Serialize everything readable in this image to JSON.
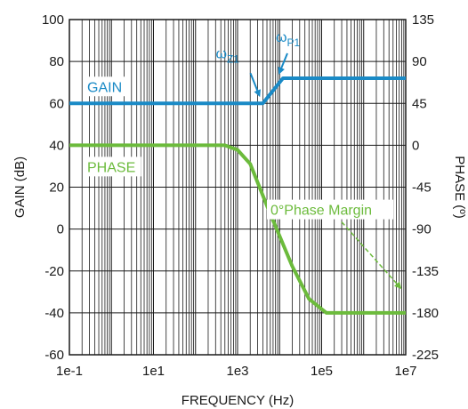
{
  "chart_data": {
    "type": "line",
    "xlabel": "FREQUENCY (Hz)",
    "ylabel_left": "GAIN (dB)",
    "ylabel_right": "PHASE (º)",
    "x_scale": "log",
    "xlim": [
      0.1,
      10000000
    ],
    "ylim_left": [
      -60,
      100
    ],
    "ylim_right": [
      -225,
      135
    ],
    "grid": true,
    "x_ticks": [
      {
        "value": 0.1,
        "label": "1e-1"
      },
      {
        "value": 10,
        "label": "1e1"
      },
      {
        "value": 1000,
        "label": "1e3"
      },
      {
        "value": 100000,
        "label": "1e5"
      },
      {
        "value": 10000000,
        "label": "1e7"
      }
    ],
    "y_left_ticks": [
      {
        "value": -60,
        "label": "-60"
      },
      {
        "value": -40,
        "label": "-40"
      },
      {
        "value": -20,
        "label": "-20"
      },
      {
        "value": 0,
        "label": "0"
      },
      {
        "value": 20,
        "label": "20"
      },
      {
        "value": 40,
        "label": "40"
      },
      {
        "value": 60,
        "label": "60"
      },
      {
        "value": 80,
        "label": "80"
      },
      {
        "value": 100,
        "label": "100"
      }
    ],
    "y_right_ticks": [
      {
        "value": -225,
        "label": "-225"
      },
      {
        "value": -180,
        "label": "-180"
      },
      {
        "value": -135,
        "label": "-135"
      },
      {
        "value": -90,
        "label": "-90"
      },
      {
        "value": -45,
        "label": "-45"
      },
      {
        "value": 0,
        "label": "0"
      },
      {
        "value": 45,
        "label": "45"
      },
      {
        "value": 90,
        "label": "90"
      },
      {
        "value": 135,
        "label": "135"
      }
    ],
    "series": [
      {
        "name": "GAIN",
        "axis": "left",
        "color": "#1a8ac6",
        "x": [
          0.1,
          4000,
          12000,
          10000000
        ],
        "y": [
          60,
          60,
          72,
          72
        ]
      },
      {
        "name": "PHASE",
        "axis": "right",
        "color": "#6cbb3c",
        "x": [
          0.1,
          500,
          1000,
          2000,
          5000,
          20000,
          50000,
          130000,
          10000000
        ],
        "y": [
          0,
          0,
          -5,
          -20,
          -65,
          -130,
          -165,
          -180,
          -180
        ]
      }
    ],
    "annotations": [
      {
        "text": "ω",
        "sub": "Z1",
        "target_x": 4000,
        "target_y": 60
      },
      {
        "text": "ω",
        "sub": "P1",
        "target_x": 12000,
        "target_y": 72
      },
      {
        "text": "0°Phase Margin",
        "target_x": 10000000,
        "target_y": -28
      }
    ]
  }
}
